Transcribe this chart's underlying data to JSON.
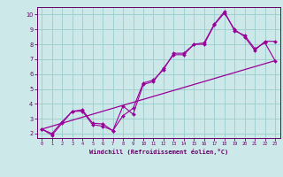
{
  "title": "",
  "xlabel": "Windchill (Refroidissement éolien,°C)",
  "bg_color": "#cce8e8",
  "line_color": "#990099",
  "grid_color": "#99cccc",
  "spine_color": "#660066",
  "tick_color": "#660066",
  "label_color": "#660066",
  "xlim": [
    -0.5,
    23.5
  ],
  "ylim": [
    1.7,
    10.5
  ],
  "xticks": [
    0,
    1,
    2,
    3,
    4,
    5,
    6,
    7,
    8,
    9,
    10,
    11,
    12,
    13,
    14,
    15,
    16,
    17,
    18,
    19,
    20,
    21,
    22,
    23
  ],
  "yticks": [
    2,
    3,
    4,
    5,
    6,
    7,
    8,
    9,
    10
  ],
  "line1_x": [
    0,
    1,
    2,
    3,
    4,
    5,
    6,
    7,
    8,
    9,
    10,
    11,
    12,
    13,
    14,
    15,
    16,
    17,
    18,
    19,
    20,
    21,
    22,
    23
  ],
  "line1_y": [
    2.3,
    1.9,
    2.7,
    3.5,
    3.5,
    2.6,
    2.5,
    2.2,
    3.85,
    3.3,
    5.3,
    5.5,
    6.4,
    7.3,
    7.3,
    8.0,
    8.0,
    9.3,
    10.1,
    9.0,
    8.5,
    7.6,
    8.2,
    8.2
  ],
  "line2_x": [
    0,
    1,
    2,
    3,
    4,
    5,
    6,
    7,
    8,
    9,
    10,
    11,
    12,
    13,
    14,
    15,
    16,
    17,
    18,
    19,
    20,
    21,
    22,
    23
  ],
  "line2_y": [
    2.3,
    2.0,
    2.8,
    3.5,
    3.6,
    2.7,
    2.65,
    2.2,
    3.2,
    3.7,
    5.4,
    5.6,
    6.3,
    7.4,
    7.4,
    8.0,
    8.1,
    9.35,
    10.2,
    8.9,
    8.6,
    7.7,
    8.1,
    6.9
  ],
  "line3_x": [
    0,
    23
  ],
  "line3_y": [
    2.3,
    6.9
  ]
}
